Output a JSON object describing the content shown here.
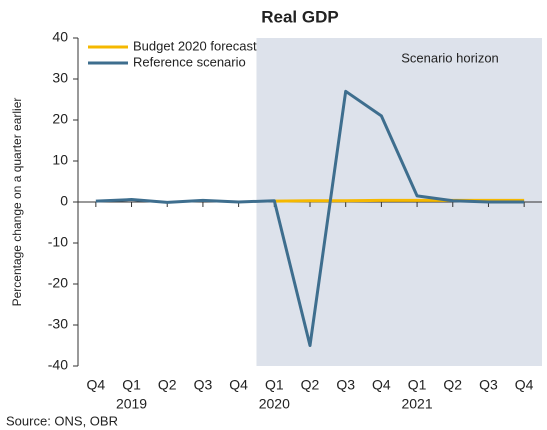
{
  "chart_data": {
    "type": "line",
    "title": "Real GDP",
    "y_label": "Percentage change on a quarter earlier",
    "source": "Source: ONS, OBR",
    "annotation": "Scenario horizon",
    "categories": [
      "Q4",
      "Q1",
      "Q2",
      "Q3",
      "Q4",
      "Q1",
      "Q2",
      "Q3",
      "Q4",
      "Q1",
      "Q2",
      "Q3",
      "Q4"
    ],
    "years": [
      "2019",
      "2020",
      "2021"
    ],
    "series": [
      {
        "name": "Budget 2020 forecast",
        "color": "#f5b800",
        "values": [
          null,
          null,
          null,
          null,
          null,
          0.2,
          0.3,
          0.3,
          0.4,
          0.4,
          0.4,
          0.4,
          0.4
        ]
      },
      {
        "name": "Reference scenario",
        "color": "#3e6e8e",
        "values": [
          0.2,
          0.6,
          -0.1,
          0.4,
          0,
          0.3,
          -35,
          27,
          21,
          1.5,
          0.3,
          0,
          0
        ]
      }
    ],
    "ylim": [
      -40,
      40
    ],
    "yticks": [
      -40,
      -30,
      -20,
      -10,
      0,
      10,
      20,
      30,
      40
    ],
    "shade_color": "#dde2eb"
  }
}
